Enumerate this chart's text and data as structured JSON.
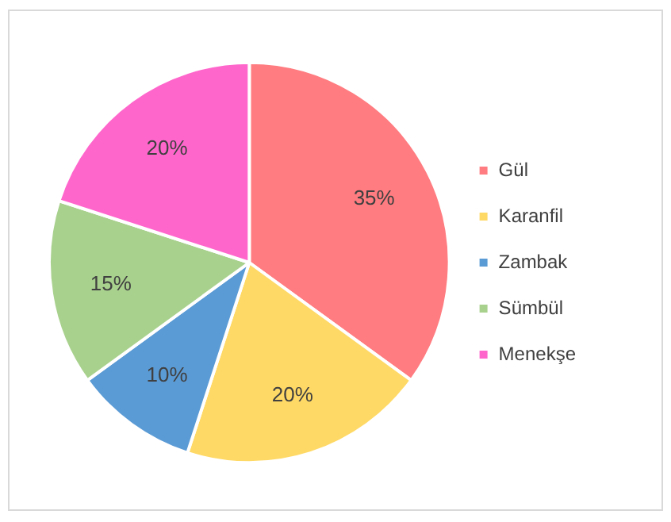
{
  "chart_data": {
    "type": "pie",
    "categories": [
      "Gül",
      "Karanfil",
      "Zambak",
      "Sümbül",
      "Menekşe"
    ],
    "values": [
      35,
      20,
      10,
      15,
      20
    ],
    "value_labels": [
      "35%",
      "20%",
      "10%",
      "15%",
      "20%"
    ],
    "colors": [
      "#ff7c80",
      "#ffd966",
      "#5b9bd5",
      "#a9d18e",
      "#ff66cc"
    ],
    "legend": "right"
  }
}
